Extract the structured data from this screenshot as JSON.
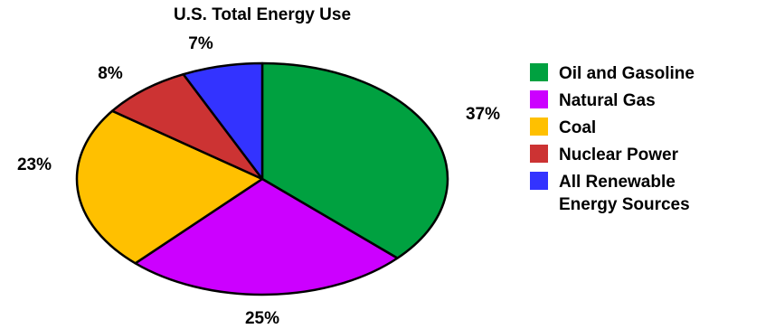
{
  "chart_data": {
    "type": "pie",
    "title": "U.S. Total Energy Use",
    "categories": [
      "Oil and Gasoline",
      "Natural Gas",
      "Coal",
      "Nuclear Power",
      "All Renewable Energy Sources"
    ],
    "values": [
      37,
      25,
      23,
      8,
      7
    ],
    "value_labels": [
      "37%",
      "25%",
      "23%",
      "8%",
      "7%"
    ],
    "legend": {
      "placement": "right",
      "entries": [
        {
          "lines": [
            "Oil and Gasoline"
          ],
          "color": "#00a140"
        },
        {
          "lines": [
            "Natural Gas"
          ],
          "color": "#cc00ff"
        },
        {
          "lines": [
            "Coal"
          ],
          "color": "#ffc000"
        },
        {
          "lines": [
            "Nuclear Power"
          ],
          "color": "#cc3333"
        },
        {
          "lines": [
            "All Renewable",
            "Energy Sources"
          ],
          "color": "#3333ff"
        }
      ]
    },
    "colors": [
      "#00a140",
      "#cc00ff",
      "#ffc000",
      "#cc3333",
      "#3333ff"
    ],
    "start_angle_deg": 0,
    "direction": "clockwise"
  }
}
